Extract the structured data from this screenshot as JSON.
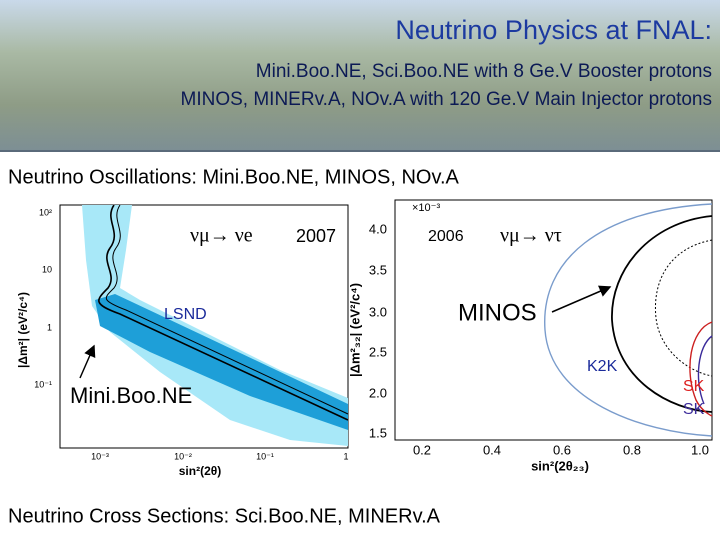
{
  "header": {
    "title": "Neutrino Physics at FNAL:",
    "subtitle_lines": [
      "Mini.Boo.NE, Sci.Boo.NE with 8 Ge.V Booster protons",
      "MINOS, MINERv.A, NOv.A with 120 Ge.V Main Injector protons"
    ]
  },
  "sections": [
    {
      "heading": "Neutrino Oscillations: Mini.Boo.NE, MINOS, NOv.A"
    },
    {
      "heading": "Neutrino Cross Sections: Sci.Boo.NE, MINERv.A"
    }
  ],
  "figures": [
    {
      "x_label": "sin²(2θ)",
      "y_label": "|Δm²| (eV²/c⁴)",
      "x_tick_labels": [
        "10⁻³",
        "10⁻²",
        "10⁻¹",
        "1"
      ],
      "y_tick_labels": [
        "10²",
        "10",
        "1",
        "10⁻¹"
      ],
      "annotations": [
        "νμ→ νe",
        "2007",
        "LSND",
        "Mini.Boo.NE"
      ]
    },
    {
      "x_label": "sin²(2θ₂₃)",
      "y_label": "|Δm²₃₂| (eV²/c⁴)",
      "y_scale_label": "×10⁻³",
      "x_tick_labels": [
        "0.2",
        "0.4",
        "0.6",
        "0.8",
        "1.0"
      ],
      "y_tick_labels": [
        "4.0",
        "3.5",
        "3.0",
        "2.5",
        "2.0",
        "1.5"
      ],
      "annotations": [
        "2006",
        "νμ→ ντ",
        "MINOS",
        "K2K",
        "SK",
        "SK"
      ]
    }
  ]
}
